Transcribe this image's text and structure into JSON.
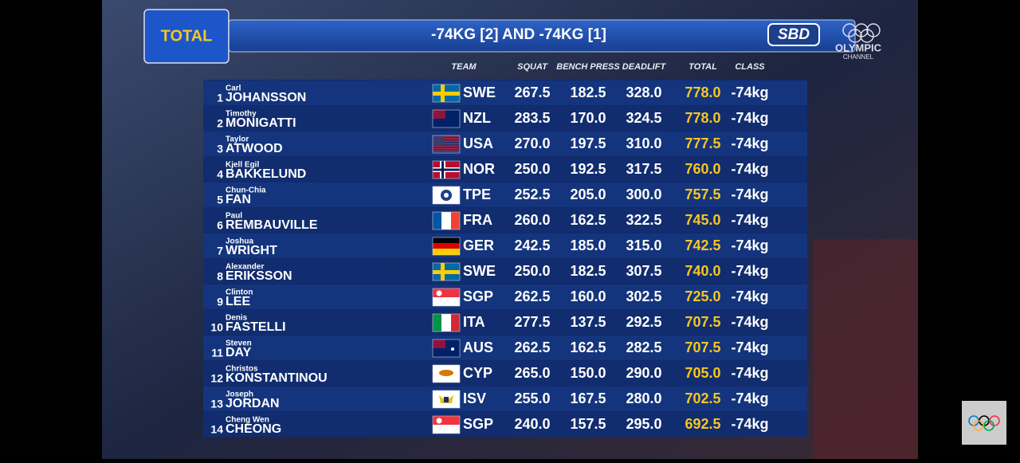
{
  "header": {
    "badge": "TOTAL",
    "title": "-74KG [2] AND -74KG [1]",
    "sponsor": "SBD",
    "channel": "OLYMPIC",
    "channel_sub": "CHANNEL"
  },
  "table": {
    "columns": [
      "TEAM",
      "SQUAT",
      "BENCH PRESS",
      "DEADLIFT",
      "TOTAL",
      "CLASS"
    ],
    "rows": [
      {
        "rank": "1",
        "first": "Carl",
        "last": "JOHANSSON",
        "team": "SWE",
        "squat": "267.5",
        "bench": "182.5",
        "deadlift": "328.0",
        "total": "778.0",
        "class": "-74kg"
      },
      {
        "rank": "2",
        "first": "Timothy",
        "last": "MONIGATTI",
        "team": "NZL",
        "squat": "283.5",
        "bench": "170.0",
        "deadlift": "324.5",
        "total": "778.0",
        "class": "-74kg"
      },
      {
        "rank": "3",
        "first": "Taylor",
        "last": "ATWOOD",
        "team": "USA",
        "squat": "270.0",
        "bench": "197.5",
        "deadlift": "310.0",
        "total": "777.5",
        "class": "-74kg"
      },
      {
        "rank": "4",
        "first": "Kjell Egil",
        "last": "BAKKELUND",
        "team": "NOR",
        "squat": "250.0",
        "bench": "192.5",
        "deadlift": "317.5",
        "total": "760.0",
        "class": "-74kg"
      },
      {
        "rank": "5",
        "first": "Chun-Chia",
        "last": "FAN",
        "team": "TPE",
        "squat": "252.5",
        "bench": "205.0",
        "deadlift": "300.0",
        "total": "757.5",
        "class": "-74kg"
      },
      {
        "rank": "6",
        "first": "Paul",
        "last": "REMBAUVILLE",
        "team": "FRA",
        "squat": "260.0",
        "bench": "162.5",
        "deadlift": "322.5",
        "total": "745.0",
        "class": "-74kg"
      },
      {
        "rank": "7",
        "first": "Joshua",
        "last": "WRIGHT",
        "team": "GER",
        "squat": "242.5",
        "bench": "185.0",
        "deadlift": "315.0",
        "total": "742.5",
        "class": "-74kg"
      },
      {
        "rank": "8",
        "first": "Alexander",
        "last": "ERIKSSON",
        "team": "SWE",
        "squat": "250.0",
        "bench": "182.5",
        "deadlift": "307.5",
        "total": "740.0",
        "class": "-74kg"
      },
      {
        "rank": "9",
        "first": "Clinton",
        "last": "LEE",
        "team": "SGP",
        "squat": "262.5",
        "bench": "160.0",
        "deadlift": "302.5",
        "total": "725.0",
        "class": "-74kg"
      },
      {
        "rank": "10",
        "first": "Denis",
        "last": "FASTELLI",
        "team": "ITA",
        "squat": "277.5",
        "bench": "137.5",
        "deadlift": "292.5",
        "total": "707.5",
        "class": "-74kg"
      },
      {
        "rank": "11",
        "first": "Steven",
        "last": "DAY",
        "team": "AUS",
        "squat": "262.5",
        "bench": "162.5",
        "deadlift": "282.5",
        "total": "707.5",
        "class": "-74kg"
      },
      {
        "rank": "12",
        "first": "Christos",
        "last": "KONSTANTINOU",
        "team": "CYP",
        "squat": "265.0",
        "bench": "150.0",
        "deadlift": "290.0",
        "total": "705.0",
        "class": "-74kg"
      },
      {
        "rank": "13",
        "first": "Joseph",
        "last": "JORDAN",
        "team": "ISV",
        "squat": "255.0",
        "bench": "167.5",
        "deadlift": "280.0",
        "total": "702.5",
        "class": "-74kg"
      },
      {
        "rank": "14",
        "first": "Cheng Wen",
        "last": "CHEONG",
        "team": "SGP",
        "squat": "240.0",
        "bench": "157.5",
        "deadlift": "295.0",
        "total": "692.5",
        "class": "-74kg"
      }
    ]
  }
}
